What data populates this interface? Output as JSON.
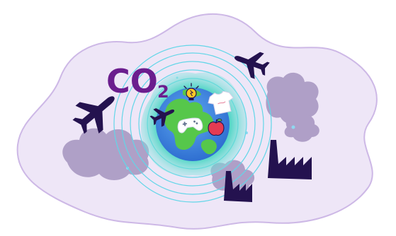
{
  "illustration": {
    "co2_main": "CO",
    "co2_sub": "2",
    "colors": {
      "blob": "#eee6f7",
      "blob_outline": "#cdb8e6",
      "smoke": "#9a88b7",
      "ink": "#24124f",
      "co2_text": "#6b1d8e",
      "ring": "#62d6e8",
      "aura": "#2fc7c4",
      "ocean": "#3b86e4",
      "land": "#56c74b",
      "bulb": "#ffc826",
      "apple": "#e53b52"
    },
    "icons": [
      "airplane-icon",
      "factory-icon",
      "earth-icon",
      "lightbulb-icon",
      "tshirt-icon",
      "game-controller-icon",
      "apple-icon"
    ]
  }
}
